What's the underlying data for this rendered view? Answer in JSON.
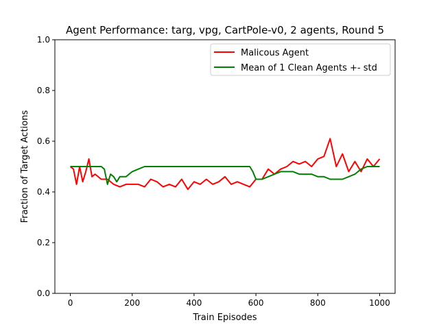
{
  "chart_data": {
    "type": "line",
    "title": "Agent Performance: targ, vpg, CartPole-v0, 2 agents, Round 5",
    "xlabel": "Train Episodes",
    "ylabel": "Fraction of Target Actions",
    "xlim": [
      -50,
      1050
    ],
    "ylim": [
      0.0,
      1.0
    ],
    "xticks": [
      0,
      200,
      400,
      600,
      800,
      1000
    ],
    "yticks": [
      0.0,
      0.2,
      0.4,
      0.6,
      0.8,
      1.0
    ],
    "xtick_labels": [
      "0",
      "200",
      "400",
      "600",
      "800",
      "1000"
    ],
    "ytick_labels": [
      "0.0",
      "0.2",
      "0.4",
      "0.6",
      "0.8",
      "1.0"
    ],
    "grid": false,
    "legend_position": "upper-right",
    "series": [
      {
        "name": "Malicous Agent",
        "color": "#ff0000",
        "x": [
          0,
          10,
          20,
          30,
          40,
          50,
          60,
          70,
          80,
          100,
          120,
          140,
          160,
          180,
          200,
          220,
          240,
          260,
          280,
          300,
          320,
          340,
          360,
          380,
          400,
          420,
          440,
          460,
          480,
          500,
          520,
          540,
          560,
          580,
          600,
          620,
          640,
          660,
          680,
          700,
          720,
          740,
          760,
          780,
          800,
          820,
          840,
          860,
          880,
          900,
          920,
          940,
          960,
          980,
          1000
        ],
        "y": [
          0.5,
          0.49,
          0.43,
          0.5,
          0.44,
          0.48,
          0.53,
          0.46,
          0.47,
          0.45,
          0.45,
          0.43,
          0.42,
          0.43,
          0.43,
          0.43,
          0.42,
          0.45,
          0.44,
          0.42,
          0.43,
          0.42,
          0.45,
          0.41,
          0.44,
          0.43,
          0.45,
          0.43,
          0.44,
          0.46,
          0.43,
          0.44,
          0.43,
          0.42,
          0.45,
          0.45,
          0.49,
          0.47,
          0.49,
          0.5,
          0.52,
          0.51,
          0.52,
          0.5,
          0.53,
          0.54,
          0.61,
          0.5,
          0.55,
          0.48,
          0.52,
          0.48,
          0.53,
          0.5,
          0.53
        ]
      },
      {
        "name": "Mean of 1 Clean Agents +- std",
        "color": "#008000",
        "x": [
          0,
          20,
          40,
          60,
          80,
          100,
          110,
          120,
          130,
          140,
          150,
          160,
          180,
          200,
          220,
          240,
          260,
          300,
          350,
          400,
          450,
          500,
          550,
          580,
          590,
          600,
          620,
          640,
          660,
          680,
          700,
          720,
          740,
          760,
          780,
          800,
          820,
          840,
          860,
          880,
          900,
          920,
          940,
          960,
          980,
          1000
        ],
        "y": [
          0.5,
          0.5,
          0.5,
          0.5,
          0.5,
          0.5,
          0.49,
          0.43,
          0.47,
          0.46,
          0.44,
          0.46,
          0.46,
          0.48,
          0.49,
          0.5,
          0.5,
          0.5,
          0.5,
          0.5,
          0.5,
          0.5,
          0.5,
          0.5,
          0.48,
          0.45,
          0.45,
          0.46,
          0.47,
          0.48,
          0.48,
          0.48,
          0.47,
          0.47,
          0.47,
          0.46,
          0.46,
          0.45,
          0.45,
          0.45,
          0.46,
          0.47,
          0.49,
          0.5,
          0.5,
          0.5
        ]
      }
    ]
  }
}
